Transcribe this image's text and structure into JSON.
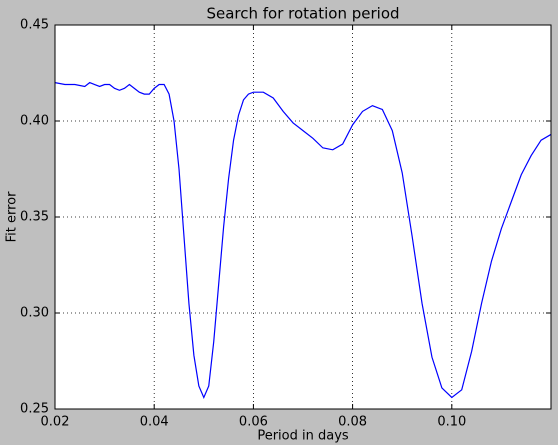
{
  "chart_data": {
    "type": "line",
    "title": "Search for rotation period",
    "x_label": "Period in days",
    "y_label": "Fit error",
    "x": [
      0.02,
      0.022,
      0.024,
      0.026,
      0.027,
      0.028,
      0.029,
      0.03,
      0.031,
      0.032,
      0.033,
      0.034,
      0.035,
      0.036,
      0.037,
      0.038,
      0.039,
      0.04,
      0.041,
      0.042,
      0.043,
      0.044,
      0.045,
      0.046,
      0.047,
      0.048,
      0.049,
      0.05,
      0.051,
      0.052,
      0.053,
      0.054,
      0.055,
      0.056,
      0.057,
      0.058,
      0.059,
      0.06,
      0.062,
      0.064,
      0.066,
      0.068,
      0.07,
      0.072,
      0.074,
      0.076,
      0.078,
      0.08,
      0.082,
      0.084,
      0.086,
      0.088,
      0.09,
      0.092,
      0.094,
      0.096,
      0.098,
      0.1,
      0.102,
      0.104,
      0.106,
      0.108,
      0.11,
      0.112,
      0.114,
      0.116,
      0.118,
      0.12
    ],
    "series": [
      {
        "color": "#0000ff",
        "values": [
          0.42,
          0.419,
          0.419,
          0.418,
          0.42,
          0.419,
          0.418,
          0.419,
          0.419,
          0.417,
          0.416,
          0.417,
          0.419,
          0.417,
          0.415,
          0.414,
          0.414,
          0.417,
          0.419,
          0.419,
          0.414,
          0.4,
          0.375,
          0.34,
          0.305,
          0.278,
          0.262,
          0.256,
          0.262,
          0.285,
          0.315,
          0.345,
          0.37,
          0.39,
          0.403,
          0.411,
          0.414,
          0.415,
          0.415,
          0.412,
          0.405,
          0.399,
          0.395,
          0.391,
          0.386,
          0.385,
          0.388,
          0.398,
          0.405,
          0.408,
          0.406,
          0.395,
          0.373,
          0.34,
          0.305,
          0.277,
          0.261,
          0.256,
          0.26,
          0.28,
          0.305,
          0.327,
          0.344,
          0.358,
          0.372,
          0.382,
          0.39,
          0.393
        ]
      }
    ],
    "xlim": [
      0.02,
      0.12
    ],
    "xticks": [
      0.02,
      0.04,
      0.06,
      0.08,
      {
        "value": 0.1,
        "label": "0.10"
      }
    ],
    "ylim": [
      0.25,
      0.45
    ],
    "yticks": [
      0.25,
      {
        "value": 0.3,
        "label": "0.30"
      },
      0.35,
      {
        "value": 0.4,
        "label": "0.40"
      },
      0.45
    ],
    "grid": true
  }
}
